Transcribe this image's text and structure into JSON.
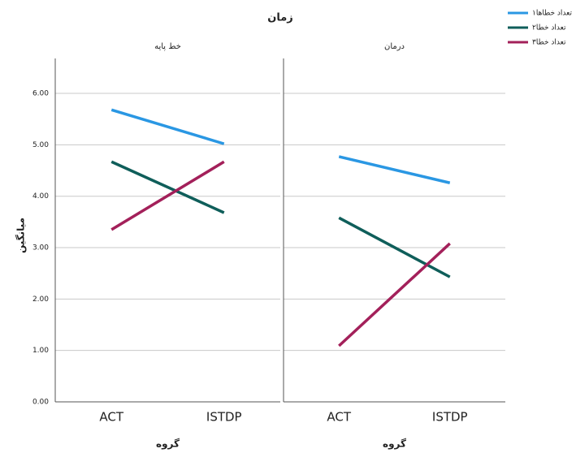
{
  "chart_data": {
    "type": "line",
    "title": "زمان",
    "y_label": "میانگین",
    "x_label": "گروه",
    "categories": [
      "ACT",
      "ISTDP"
    ],
    "ylim": [
      0,
      6.68
    ],
    "yticks": [
      {
        "value": 0,
        "label": "0.00"
      },
      {
        "value": 1,
        "label": "1.00"
      },
      {
        "value": 2,
        "label": "2.00"
      },
      {
        "value": 3,
        "label": "3.00"
      },
      {
        "value": 4,
        "label": "4.00"
      },
      {
        "value": 5,
        "label": "5.00"
      },
      {
        "value": 6,
        "label": "6.00"
      }
    ],
    "grid": true,
    "legend": "top-right",
    "series": [
      {
        "name": "تعداد خطاها۱",
        "color": "#2a97e3"
      },
      {
        "name": "تعداد خطا۲",
        "color": "#0f5e5a"
      },
      {
        "name": "تعداد خطا۳",
        "color": "#a3205a"
      }
    ],
    "panels": [
      {
        "title": "خط پایه",
        "values": [
          [
            5.68,
            5.02
          ],
          [
            4.67,
            3.68
          ],
          [
            3.35,
            4.67
          ]
        ]
      },
      {
        "title": "درمان",
        "values": [
          [
            4.77,
            4.26
          ],
          [
            3.58,
            2.43
          ],
          [
            1.09,
            3.08
          ]
        ]
      }
    ]
  }
}
